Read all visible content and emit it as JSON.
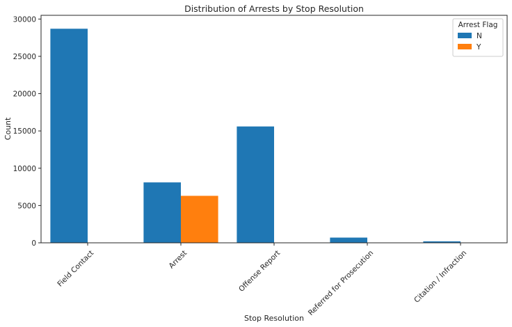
{
  "chart_data": {
    "type": "bar",
    "title": "Distribution of Arrests by Stop Resolution",
    "xlabel": "Stop Resolution",
    "ylabel": "Count",
    "categories": [
      "Field Contact",
      "Arrest",
      "Offense Report",
      "Referred for Prosecution",
      "Citation / Infraction"
    ],
    "series": [
      {
        "name": "N",
        "color": "#1f77b4",
        "values": [
          28700,
          8100,
          15600,
          700,
          200
        ]
      },
      {
        "name": "Y",
        "color": "#ff7f0e",
        "values": [
          0,
          6300,
          0,
          0,
          0
        ]
      }
    ],
    "ylim": [
      0,
      30500
    ],
    "yticks": [
      0,
      5000,
      10000,
      15000,
      20000,
      25000,
      30000
    ],
    "grid": false,
    "legend": {
      "title": "Arrest Flag",
      "position": "top-right"
    }
  }
}
